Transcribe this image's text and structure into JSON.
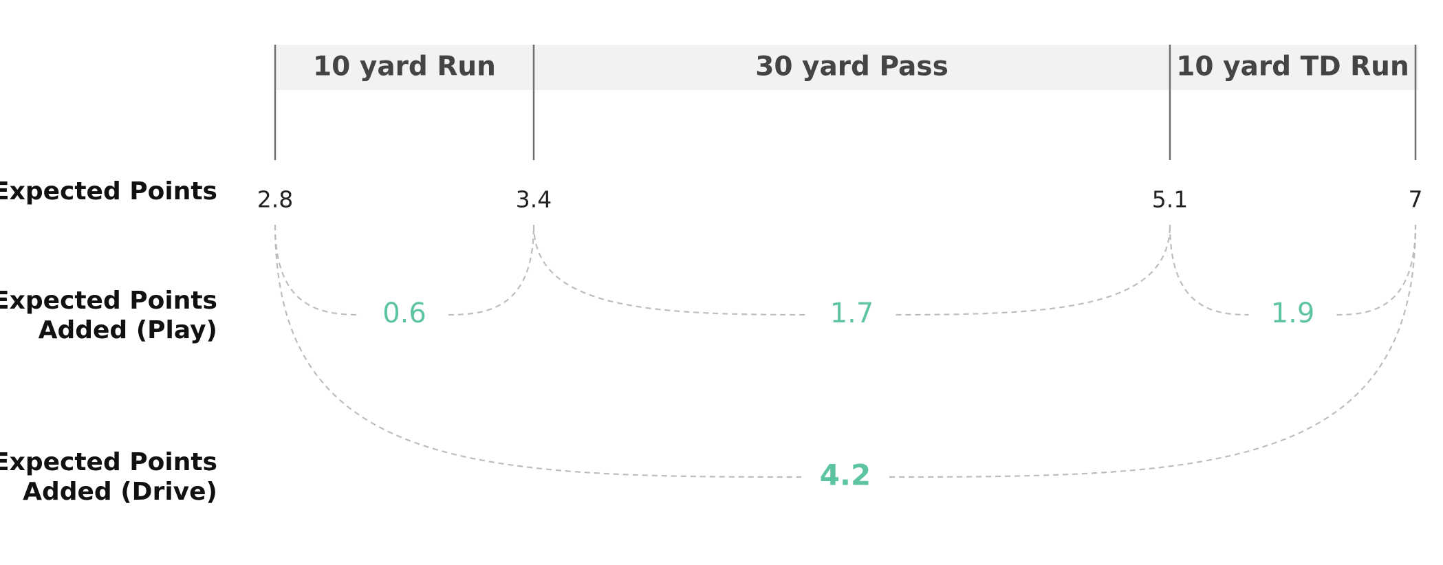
{
  "plays": [
    {
      "label": "10 yard Run",
      "start_ep": "2.8",
      "end_ep": "3.4",
      "epa": "0.6"
    },
    {
      "label": "30 yard Pass",
      "start_ep": "3.4",
      "end_ep": "5.1",
      "epa": "1.7"
    },
    {
      "label": "10 yard TD Run",
      "start_ep": "5.1",
      "end_ep": "7",
      "epa": "1.9"
    }
  ],
  "expected_points": [
    "2.8",
    "3.4",
    "5.1",
    "7"
  ],
  "drive": {
    "epa": "4.2"
  },
  "row_labels": {
    "expected_points": [
      "Expected Points"
    ],
    "epa_play": [
      "Expected Points",
      "Added (Play)"
    ],
    "epa_drive": [
      "Expected Points",
      "Added (Drive)"
    ]
  },
  "colors": {
    "header_band": "#f2f2f2",
    "header_text": "#444444",
    "boundary_line": "#6e6e6e",
    "value_text": "#222222",
    "accent_green": "#5cc4a0",
    "dashed_arc": "#bdbdbd",
    "label_text": "#111111"
  }
}
